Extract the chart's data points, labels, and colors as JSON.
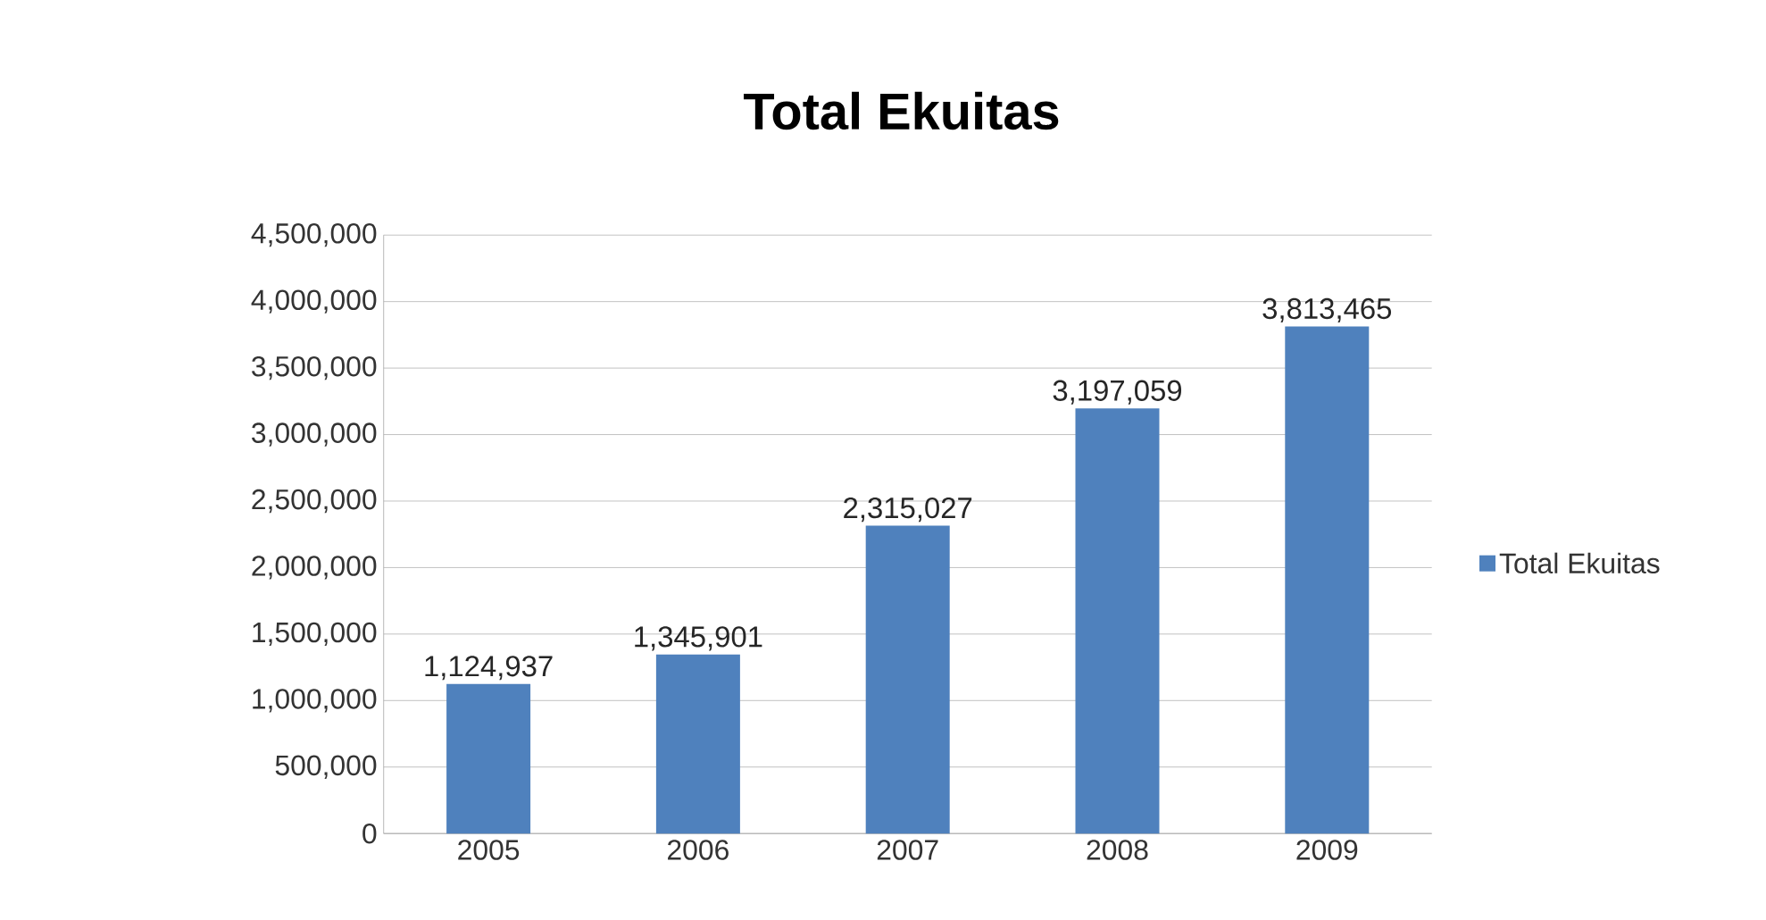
{
  "chart_data": {
    "type": "bar",
    "title": "Total Ekuitas",
    "categories": [
      "2005",
      "2006",
      "2007",
      "2008",
      "2009"
    ],
    "series": [
      {
        "name": "Total Ekuitas",
        "color": "#4f81bd",
        "values": [
          1124937,
          1345901,
          2315027,
          3197059,
          3813465
        ],
        "value_labels": [
          "1,124,937",
          "1,345,901",
          "2,315,027",
          "3,197,059",
          "3,813,465"
        ]
      }
    ],
    "ylim": [
      0,
      4500000
    ],
    "yticks": [
      0,
      {
        "value": 500000,
        "label": "500,000"
      },
      {
        "value": 1000000,
        "label": "1,000,000"
      },
      {
        "value": 1500000,
        "label": "1,500,000"
      },
      {
        "value": 2000000,
        "label": "2,000,000"
      },
      {
        "value": 2500000,
        "label": "2,500,000"
      },
      {
        "value": 3000000,
        "label": "3,000,000"
      },
      {
        "value": 3500000,
        "label": "3,500,000"
      },
      {
        "value": 4000000,
        "label": "4,000,000"
      },
      {
        "value": 4500000,
        "label": "4,500,000"
      }
    ],
    "grid": "y",
    "legend": "right"
  }
}
